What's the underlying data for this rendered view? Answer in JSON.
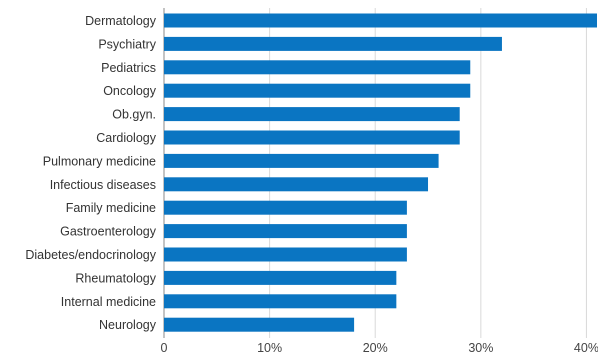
{
  "chart_data": {
    "type": "bar",
    "orientation": "horizontal",
    "title": "",
    "xlabel": "",
    "ylabel": "",
    "categories": [
      "Dermatology",
      "Psychiatry",
      "Pediatrics",
      "Oncology",
      "Ob.gyn.",
      "Cardiology",
      "Pulmonary medicine",
      "Infectious diseases",
      "Family medicine",
      "Gastroenterology",
      "Diabetes/endocrinology",
      "Rheumatology",
      "Internal medicine",
      "Neurology"
    ],
    "values": [
      41,
      32,
      29,
      29,
      28,
      28,
      26,
      25,
      23,
      23,
      23,
      22,
      22,
      18
    ],
    "xlim": [
      0,
      41
    ],
    "xticks": [
      0,
      10,
      20,
      30,
      40
    ],
    "xtick_labels": [
      "0",
      "10%",
      "20%",
      "30%",
      "40%"
    ],
    "grid": "vertical",
    "legend": "none",
    "bar_color": "#0a75c2"
  }
}
